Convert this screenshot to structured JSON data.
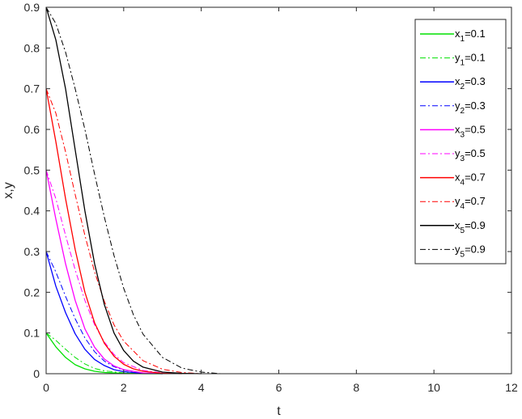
{
  "chart_data": {
    "type": "line",
    "title": "",
    "xlabel": "t",
    "ylabel": "x,y",
    "xlim": [
      0,
      12
    ],
    "ylim": [
      0,
      0.9
    ],
    "xticks": [
      "0",
      "2",
      "4",
      "6",
      "8",
      "10",
      "12"
    ],
    "yticks": [
      "0",
      "0.1",
      "0.2",
      "0.3",
      "0.4",
      "0.5",
      "0.6",
      "0.7",
      "0.8",
      "0.9"
    ],
    "grid": false,
    "legend_position": "top-right",
    "series": [
      {
        "name": "x1=0.1",
        "label_base": "x",
        "label_sub": "1",
        "label_rest": "=0.1",
        "color": "#00e000",
        "style": "solid",
        "x": [
          0,
          0.25,
          0.5,
          0.75,
          1.0,
          1.25,
          1.5,
          2.0,
          2.5,
          3.0
        ],
        "y": [
          0.1,
          0.066,
          0.04,
          0.022,
          0.012,
          0.006,
          0.003,
          0.001,
          0,
          0
        ]
      },
      {
        "name": "y1=0.1",
        "label_base": "y",
        "label_sub": "1",
        "label_rest": "=0.1",
        "color": "#00e000",
        "style": "dashdot",
        "x": [
          0,
          0.25,
          0.5,
          0.75,
          1.0,
          1.25,
          1.5,
          2.0,
          2.5,
          3.0
        ],
        "y": [
          0.1,
          0.082,
          0.06,
          0.04,
          0.024,
          0.013,
          0.007,
          0.002,
          0.001,
          0
        ]
      },
      {
        "name": "x2=0.3",
        "label_base": "x",
        "label_sub": "2",
        "label_rest": "=0.3",
        "color": "#0000ff",
        "style": "solid",
        "x": [
          0,
          0.25,
          0.5,
          0.75,
          1.0,
          1.25,
          1.5,
          1.75,
          2.0,
          2.5,
          3.0
        ],
        "y": [
          0.3,
          0.215,
          0.15,
          0.098,
          0.06,
          0.035,
          0.02,
          0.01,
          0.005,
          0.001,
          0
        ]
      },
      {
        "name": "y2=0.3",
        "label_base": "y",
        "label_sub": "2",
        "label_rest": "=0.3",
        "color": "#0000ff",
        "style": "dashdot",
        "x": [
          0,
          0.25,
          0.5,
          0.75,
          1.0,
          1.25,
          1.5,
          1.75,
          2.0,
          2.5,
          3.0
        ],
        "y": [
          0.3,
          0.25,
          0.19,
          0.135,
          0.088,
          0.054,
          0.031,
          0.017,
          0.009,
          0.002,
          0
        ]
      },
      {
        "name": "x3=0.5",
        "label_base": "x",
        "label_sub": "3",
        "label_rest": "=0.5",
        "color": "#ff00ff",
        "style": "solid",
        "x": [
          0,
          0.25,
          0.5,
          0.75,
          1.0,
          1.25,
          1.5,
          1.75,
          2.0,
          2.5,
          3.0
        ],
        "y": [
          0.5,
          0.38,
          0.27,
          0.18,
          0.11,
          0.065,
          0.036,
          0.019,
          0.01,
          0.002,
          0
        ]
      },
      {
        "name": "y3=0.5",
        "label_base": "y",
        "label_sub": "3",
        "label_rest": "=0.5",
        "color": "#ff00ff",
        "style": "dashdot",
        "x": [
          0,
          0.25,
          0.5,
          0.75,
          1.0,
          1.25,
          1.5,
          1.75,
          2.0,
          2.5,
          3.0,
          3.5
        ],
        "y": [
          0.5,
          0.43,
          0.34,
          0.255,
          0.18,
          0.12,
          0.078,
          0.047,
          0.027,
          0.008,
          0.002,
          0
        ]
      },
      {
        "name": "x4=0.7",
        "label_base": "x",
        "label_sub": "4",
        "label_rest": "=0.7",
        "color": "#ff0000",
        "style": "solid",
        "x": [
          0,
          0.25,
          0.5,
          0.75,
          1.0,
          1.25,
          1.5,
          1.75,
          2.0,
          2.25,
          2.5,
          3.0,
          3.5
        ],
        "y": [
          0.7,
          0.57,
          0.43,
          0.305,
          0.2,
          0.125,
          0.075,
          0.043,
          0.023,
          0.012,
          0.006,
          0.001,
          0
        ]
      },
      {
        "name": "y4=0.7",
        "label_base": "y",
        "label_sub": "4",
        "label_rest": "=0.7",
        "color": "#ff0000",
        "style": "dashdot",
        "x": [
          0,
          0.25,
          0.5,
          0.75,
          1.0,
          1.25,
          1.5,
          1.75,
          2.0,
          2.5,
          3.0,
          3.5,
          4.0
        ],
        "y": [
          0.7,
          0.64,
          0.545,
          0.44,
          0.34,
          0.25,
          0.178,
          0.12,
          0.08,
          0.032,
          0.011,
          0.003,
          0
        ]
      },
      {
        "name": "x5=0.9",
        "label_base": "x",
        "label_sub": "5",
        "label_rest": "=0.9",
        "color": "#000000",
        "style": "solid",
        "x": [
          0,
          0.25,
          0.5,
          0.75,
          1.0,
          1.25,
          1.5,
          1.75,
          2.0,
          2.25,
          2.5,
          3.0,
          3.5,
          4.0
        ],
        "y": [
          0.9,
          0.82,
          0.7,
          0.55,
          0.4,
          0.27,
          0.17,
          0.1,
          0.057,
          0.031,
          0.016,
          0.004,
          0.001,
          0
        ]
      },
      {
        "name": "y5=0.9",
        "label_base": "y",
        "label_sub": "5",
        "label_rest": "=0.9",
        "color": "#000000",
        "style": "dashdot",
        "x": [
          0,
          0.25,
          0.5,
          0.75,
          1.0,
          1.25,
          1.5,
          1.75,
          2.0,
          2.25,
          2.5,
          3.0,
          3.5,
          4.0,
          4.5
        ],
        "y": [
          0.9,
          0.86,
          0.79,
          0.7,
          0.6,
          0.49,
          0.385,
          0.29,
          0.21,
          0.145,
          0.097,
          0.04,
          0.014,
          0.004,
          0
        ]
      }
    ]
  }
}
